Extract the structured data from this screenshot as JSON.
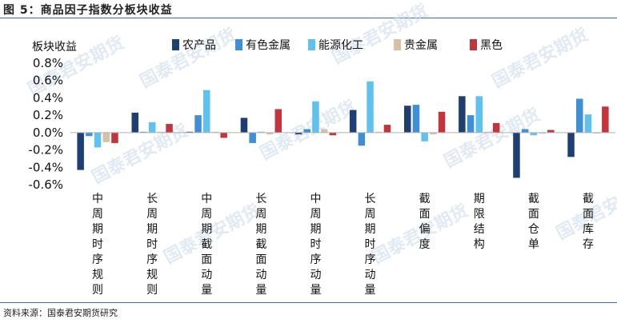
{
  "figure_title": "图 5：商品因子指数分板块收益",
  "source_note": "资料来源：国泰君安期货研究",
  "watermark_text": "国泰君安期货",
  "colors": {
    "rule": "#3a6fb5",
    "series": [
      "#1f3f73",
      "#3d8fd6",
      "#5fc1ee",
      "#d9bfa6",
      "#c3343c"
    ]
  },
  "chart_data": {
    "type": "bar",
    "title": "",
    "ylabel": "板块收益",
    "xlabel": "",
    "ylim": [
      -0.6,
      0.8
    ],
    "yticks": [
      "0.8%",
      "0.6%",
      "0.4%",
      "0.2%",
      "0.0%",
      "-0.2%",
      "-0.4%",
      "-0.6%"
    ],
    "ytick_values": [
      0.8,
      0.6,
      0.4,
      0.2,
      0.0,
      -0.2,
      -0.4,
      -0.6
    ],
    "grid": false,
    "legend_position": "top",
    "categories": [
      "中周期时序规则",
      "长周期时序规则",
      "中周期截面动量",
      "长周期截面动量",
      "中周期时序动量",
      "长周期时序动量",
      "截面偏度",
      "期限结构",
      "截面仓单",
      "截面库存"
    ],
    "series": [
      {
        "name": "农产品",
        "values": [
          -0.43,
          0.23,
          0.01,
          0.17,
          -0.02,
          0.26,
          0.31,
          0.42,
          -0.52,
          -0.28
        ]
      },
      {
        "name": "有色金属",
        "values": [
          -0.04,
          0.01,
          0.2,
          -0.12,
          0.04,
          -0.15,
          0.32,
          0.2,
          0.04,
          0.39
        ]
      },
      {
        "name": "能源化工",
        "values": [
          -0.17,
          0.12,
          0.49,
          0.01,
          0.36,
          0.59,
          -0.1,
          0.42,
          -0.03,
          0.21
        ]
      },
      {
        "name": "贵金属",
        "values": [
          -0.11,
          0.01,
          0.01,
          -0.02,
          0.04,
          0.01,
          -0.02,
          0.01,
          -0.01,
          -0.01
        ]
      },
      {
        "name": "黑色",
        "values": [
          -0.12,
          0.1,
          -0.06,
          0.27,
          -0.03,
          0.09,
          0.24,
          0.11,
          0.03,
          0.3
        ]
      }
    ]
  }
}
